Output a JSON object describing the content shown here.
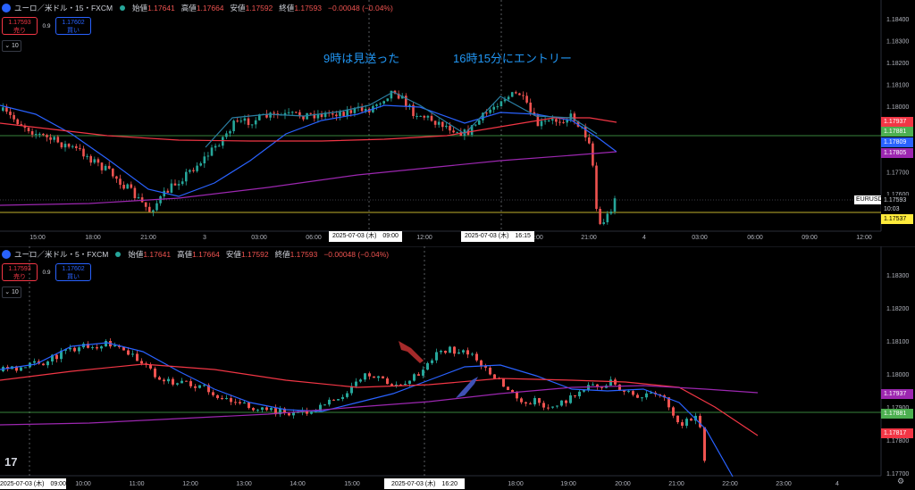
{
  "top": {
    "symbol": "ユーロ／米ドル・15・FXCM",
    "ohlc": [
      {
        "k": "始値",
        "v": "1.17641"
      },
      {
        "k": "高値",
        "v": "1.17664"
      },
      {
        "k": "安値",
        "v": "1.17592"
      },
      {
        "k": "終値",
        "v": "1.17593"
      }
    ],
    "change": "−0.00048 (−0.04%)",
    "sell_price": "1.17593",
    "sell_label": "売り",
    "spread": "0.9",
    "buy_price": "1.17602",
    "buy_label": "買い",
    "indicator_count": "10",
    "price_ticks": [
      "1.18400",
      "1.18300",
      "1.18200",
      "1.18100",
      "1.18000",
      "1.17900",
      "1.17800",
      "1.17700",
      "1.17600"
    ],
    "time_ticks": [
      "15:00",
      "18:00",
      "21:00",
      "3",
      "03:00",
      "06:00",
      "12:00",
      "18:00",
      "21:00",
      "4",
      "03:00",
      "06:00",
      "09:00",
      "12:00"
    ],
    "crosshair_times": [
      "2025-07-03 (木)　09:00",
      "2025-07-03 (木)　16:15"
    ],
    "annotations": [
      "9時は見送った",
      "16時15分にエントリー"
    ],
    "symbol_tag": "EURUSD",
    "price_tags": [
      {
        "text": "1.17937",
        "color": "#f23645",
        "fg": "#ffffff"
      },
      {
        "text": "1.17881",
        "color": "#4caf50",
        "fg": "#ffffff"
      },
      {
        "text": "1.17809",
        "color": "#2962ff",
        "fg": "#ffffff"
      },
      {
        "text": "1.17805",
        "color": "#9c27b0",
        "fg": "#ffffff"
      },
      {
        "text": "1.17593",
        "color": "#000000",
        "fg": "#d1d4dc"
      },
      {
        "text": "10:03",
        "color": "#000000",
        "fg": "#d1d4dc"
      },
      {
        "text": "1.17537",
        "color": "#ffeb3b",
        "fg": "#000000"
      }
    ]
  },
  "bottom": {
    "symbol": "ユーロ／米ドル・5・FXCM",
    "ohlc": [
      {
        "k": "始値",
        "v": "1.17641"
      },
      {
        "k": "高値",
        "v": "1.17664"
      },
      {
        "k": "安値",
        "v": "1.17592"
      },
      {
        "k": "終値",
        "v": "1.17593"
      }
    ],
    "change": "−0.00048 (−0.04%)",
    "sell_price": "1.17593",
    "sell_label": "売り",
    "spread": "0.9",
    "buy_price": "1.17602",
    "buy_label": "買い",
    "indicator_count": "10",
    "price_ticks": [
      "1.18300",
      "1.18200",
      "1.18100",
      "1.18000",
      "1.17900",
      "1.17800",
      "1.17700"
    ],
    "time_ticks": [
      "2025-07-03 (木)　09:00",
      "10:00",
      "11:00",
      "12:00",
      "13:00",
      "14:00",
      "15:00",
      "2025-07-03 (木)　16:20",
      "18:00",
      "19:00",
      "20:00",
      "21:00",
      "22:00",
      "23:00",
      "4"
    ],
    "price_tags": [
      {
        "text": "1.17937",
        "color": "#9c27b0",
        "fg": "#ffffff"
      },
      {
        "text": "1.17881",
        "color": "#4caf50",
        "fg": "#ffffff"
      },
      {
        "text": "1.17817",
        "color": "#f23645",
        "fg": "#ffffff"
      }
    ],
    "tv_logo": "17"
  }
}
